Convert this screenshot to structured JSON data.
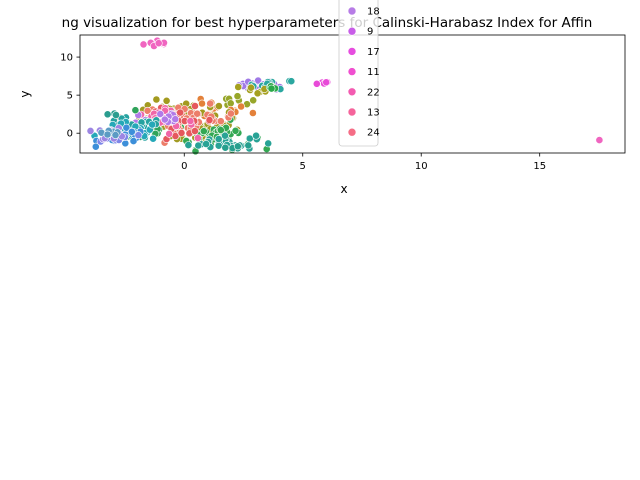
{
  "chart_data": {
    "type": "scatter",
    "title": "ng visualization for best hyperparameters for Calinski-Harabasz Index for Affin",
    "xlabel": "x",
    "ylabel": "y",
    "xlim": [
      -4.4,
      18.6
    ],
    "ylim": [
      -2.6,
      12.9
    ],
    "xticks": [
      0,
      5,
      10,
      15
    ],
    "yticks": [
      0,
      5,
      10
    ],
    "grid": false,
    "legend_position": "top (partially clipped)",
    "legend": [
      {
        "label": "18",
        "color": "#b77ce6"
      },
      {
        "label": "9",
        "color": "#c85de8"
      },
      {
        "label": "17",
        "color": "#e64ddf"
      },
      {
        "label": "11",
        "color": "#f04fd0"
      },
      {
        "label": "22",
        "color": "#f35bb1"
      },
      {
        "label": "13",
        "color": "#f5649b"
      },
      {
        "label": "24",
        "color": "#f56d86"
      }
    ],
    "clusters": [
      {
        "name": "pink-top",
        "color": "#f065c0",
        "cx": -1.0,
        "cy": 11.8,
        "sx": 0.35,
        "sy": 0.25,
        "n": 10
      },
      {
        "name": "outlier",
        "color": "#f065c0",
        "cx": 17.5,
        "cy": -0.9,
        "sx": 0.02,
        "sy": 0.02,
        "n": 1
      },
      {
        "name": "magenta-right",
        "color": "#e84ad8",
        "cx": 5.6,
        "cy": 6.6,
        "sx": 0.35,
        "sy": 0.1,
        "n": 5
      },
      {
        "name": "purple-upper",
        "color": "#a07ae6",
        "cx": 3.3,
        "cy": 6.3,
        "sx": 0.5,
        "sy": 0.3,
        "n": 24
      },
      {
        "name": "teal-upper",
        "color": "#2ba7a0",
        "cx": 3.7,
        "cy": 6.4,
        "sx": 0.5,
        "sy": 0.3,
        "n": 12
      },
      {
        "name": "olive-upper",
        "color": "#a5a020",
        "cx": 3.1,
        "cy": 5.7,
        "sx": 0.4,
        "sy": 0.3,
        "n": 8
      },
      {
        "name": "green-upper",
        "color": "#2aa84a",
        "cx": 3.4,
        "cy": 5.9,
        "sx": 0.3,
        "sy": 0.2,
        "n": 4
      },
      {
        "name": "lime-bridge",
        "color": "#97a62a",
        "cx": 2.2,
        "cy": 4.2,
        "sx": 0.4,
        "sy": 0.4,
        "n": 8
      },
      {
        "name": "orange-mid",
        "color": "#e3813a",
        "cx": 1.2,
        "cy": 3.0,
        "sx": 0.8,
        "sy": 0.6,
        "n": 18
      },
      {
        "name": "olive-mid",
        "color": "#a39a1f",
        "cx": 0.0,
        "cy": 2.9,
        "sx": 1.0,
        "sy": 0.7,
        "n": 28
      },
      {
        "name": "olive-center",
        "color": "#a29b24",
        "cx": 0.7,
        "cy": 0.5,
        "sx": 0.9,
        "sy": 1.0,
        "n": 55
      },
      {
        "name": "green-center",
        "color": "#34a853",
        "cx": 1.3,
        "cy": -0.3,
        "sx": 0.8,
        "sy": 0.9,
        "n": 40
      },
      {
        "name": "teal-center",
        "color": "#28a396",
        "cx": 1.6,
        "cy": -1.2,
        "sx": 0.7,
        "sy": 0.5,
        "n": 30
      },
      {
        "name": "salmon-center",
        "color": "#ec7e6a",
        "cx": 0.2,
        "cy": 1.8,
        "sx": 1.0,
        "sy": 0.9,
        "n": 40
      },
      {
        "name": "red-center",
        "color": "#e5585d",
        "cx": -0.4,
        "cy": 1.6,
        "sx": 0.9,
        "sy": 0.9,
        "n": 25
      },
      {
        "name": "pink-center",
        "color": "#f066a8",
        "cx": -1.0,
        "cy": 1.4,
        "sx": 0.7,
        "sy": 0.8,
        "n": 25
      },
      {
        "name": "purple-center",
        "color": "#b17be8",
        "cx": -1.1,
        "cy": 1.8,
        "sx": 0.6,
        "sy": 0.7,
        "n": 15
      },
      {
        "name": "green-left",
        "color": "#30a35a",
        "cx": -1.8,
        "cy": 0.4,
        "sx": 0.6,
        "sy": 0.8,
        "n": 25
      },
      {
        "name": "teal-left",
        "color": "#26a2a0",
        "cx": -2.3,
        "cy": 0.6,
        "sx": 0.7,
        "sy": 0.7,
        "n": 30
      },
      {
        "name": "cyan-left",
        "color": "#25a8b8",
        "cx": -2.2,
        "cy": 0.2,
        "sx": 0.6,
        "sy": 0.6,
        "n": 18
      },
      {
        "name": "blue-left",
        "color": "#3d8fd9",
        "cx": -2.6,
        "cy": -0.5,
        "sx": 0.5,
        "sy": 0.5,
        "n": 25
      },
      {
        "name": "violet-left",
        "color": "#7d86e8",
        "cx": -2.9,
        "cy": -0.6,
        "sx": 0.4,
        "sy": 0.5,
        "n": 15
      },
      {
        "name": "lavender-far-left",
        "color": "#9d86e3",
        "cx": -3.1,
        "cy": -0.1,
        "sx": 0.3,
        "sy": 0.4,
        "n": 12
      },
      {
        "name": "steel-far-left",
        "color": "#5c9bc4",
        "cx": -3.2,
        "cy": 0.2,
        "sx": 0.3,
        "sy": 0.25,
        "n": 8
      },
      {
        "name": "teal-lower-left",
        "color": "#2b9d8f",
        "cx": -2.9,
        "cy": 2.5,
        "sx": 0.15,
        "sy": 0.08,
        "n": 3
      },
      {
        "name": "teal-bottom-right",
        "color": "#269f8e",
        "cx": 2.3,
        "cy": -1.8,
        "sx": 0.3,
        "sy": 0.15,
        "n": 6
      }
    ]
  }
}
